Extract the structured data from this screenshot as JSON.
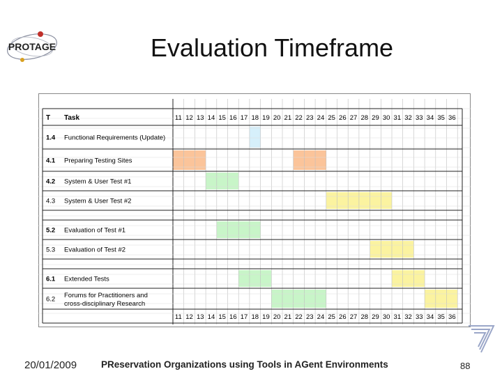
{
  "header": {
    "logo_text": "PROTAGE",
    "title": "Evaluation Timeframe"
  },
  "gantt": {
    "col_t": "T",
    "col_task": "Task",
    "months": [
      "11",
      "12",
      "13",
      "14",
      "15",
      "16",
      "17",
      "18",
      "19",
      "20",
      "21",
      "22",
      "23",
      "24",
      "25",
      "26",
      "27",
      "28",
      "29",
      "30",
      "31",
      "32",
      "33",
      "34",
      "35",
      "36"
    ],
    "rows": [
      {
        "id": "1.4",
        "lines": [
          "Functional Requirements (Update)"
        ],
        "bold": true,
        "bars": [
          {
            "from": 18,
            "to": 18,
            "color": "#d6f0fb"
          }
        ]
      },
      {
        "id": "4.1",
        "lines": [
          "Preparing Testing Sites"
        ],
        "bold": true,
        "bars": [
          {
            "from": 11,
            "to": 13,
            "color": "#fbc49a"
          },
          {
            "from": 22,
            "to": 24,
            "color": "#fbc49a"
          }
        ]
      },
      {
        "id": "4.2",
        "lines": [
          "System & User Test #1"
        ],
        "bold": true,
        "bars": [
          {
            "from": 14,
            "to": 16,
            "color": "#c8f5c8"
          }
        ]
      },
      {
        "id": "4.3",
        "lines": [
          "System & User Test #2"
        ],
        "bold": false,
        "bars": [
          {
            "from": 25,
            "to": 30,
            "color": "#fbf3a0"
          }
        ]
      },
      {
        "id": "5.2",
        "lines": [
          "Evaluation of Test #1"
        ],
        "bold": true,
        "bars": [
          {
            "from": 15,
            "to": 18,
            "color": "#c8f5c8"
          }
        ]
      },
      {
        "id": "5.3",
        "lines": [
          "Evaluation of Test #2"
        ],
        "bold": false,
        "bars": [
          {
            "from": 29,
            "to": 32,
            "color": "#fbf3a0"
          }
        ]
      },
      {
        "id": "6.1",
        "lines": [
          "Extended Tests"
        ],
        "bold": true,
        "bars": [
          {
            "from": 17,
            "to": 19,
            "color": "#c8f5c8"
          },
          {
            "from": 31,
            "to": 33,
            "color": "#fbf3a0"
          }
        ]
      },
      {
        "id": "6.2",
        "lines": [
          "Forums for Practitioners and",
          "cross-disciplinary Research"
        ],
        "bold": false,
        "bars": [
          {
            "from": 20,
            "to": 24,
            "color": "#c8f5c8"
          },
          {
            "from": 34,
            "to": 36,
            "color": "#fbf3a0"
          }
        ]
      }
    ]
  },
  "footer": {
    "date": "20/01/2009",
    "text": "PReservation Organizations using Tools in AGent Environments",
    "page": "88"
  },
  "icons": {
    "logo": "protage-orbit-logo",
    "fp7": "fp7-logo"
  }
}
